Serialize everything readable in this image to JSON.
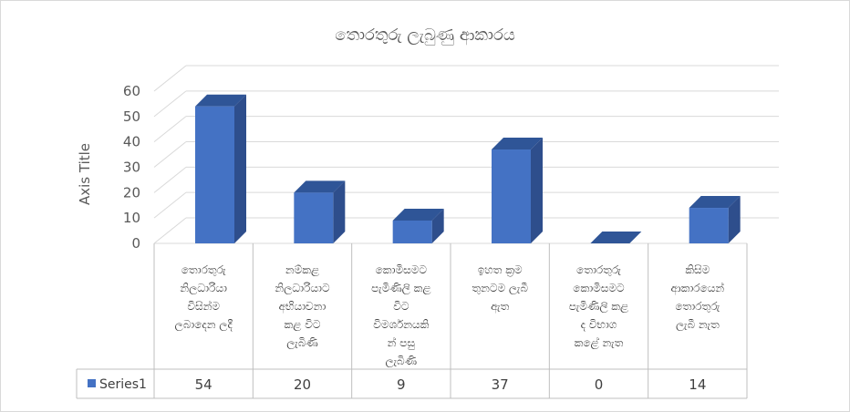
{
  "chart_data": {
    "type": "bar",
    "title": "තොරතුරු ලැබුණු ආකාරය",
    "ylabel": "Axis Title",
    "xlabel": "",
    "ylim": [
      0,
      60
    ],
    "yticks": [
      0,
      10,
      20,
      30,
      40,
      50,
      60
    ],
    "grid": true,
    "legend": "data-table",
    "style": "3d-column",
    "colors": {
      "bar_front": "#4472c4",
      "bar_side": "#2e4e8c",
      "bar_top": "#2f5597",
      "grid": "#d9d9d9",
      "text": "#595959"
    },
    "categories": [
      [
        "තොරතුරු",
        "නිලධාරියා",
        "විසින්ම",
        "ලබාදෙන ලදී"
      ],
      [
        "නම්කළ",
        "නිලධාරියාට",
        "අභියාචනා",
        "කළ විට",
        "ලැබිණි"
      ],
      [
        "කොමිසමට",
        "පැමිණිලි කළ",
        "විට",
        "විමර්ශනයකි",
        "න් පසු",
        "ලැබිණි"
      ],
      [
        "ඉහත ක්‍රම",
        "තුනටම ලැබී",
        "ඇත"
      ],
      [
        "තොරතුරු",
        "කොමිසමට",
        "පැමිණිලි කළ",
        "ද විභාග",
        "කළේ නැත"
      ],
      [
        "කිසිම",
        "ආකාරයෙන්",
        "තොරතුරු",
        "ලැබී නැත"
      ]
    ],
    "series": [
      {
        "name": "Series1",
        "values": [
          54,
          20,
          9,
          37,
          0,
          14
        ]
      }
    ]
  }
}
